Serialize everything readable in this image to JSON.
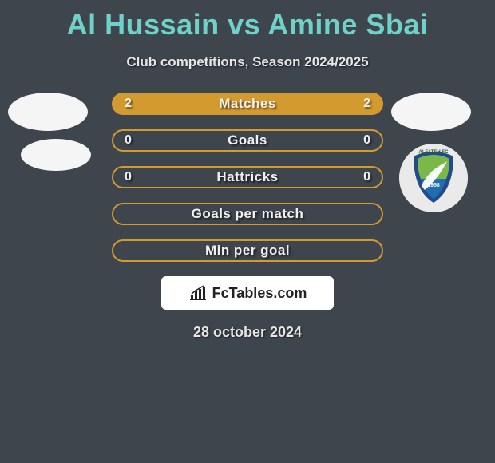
{
  "title": "Al Hussain vs Amine Sbai",
  "title_color": "#6fd1c8",
  "subtitle": "Club competitions, Season 2024/2025",
  "background_color": "#3e454d",
  "rows": [
    {
      "label": "Matches",
      "left": "2",
      "right": "2",
      "fill": "#d39a30",
      "border": "#d39a30",
      "label_only": false
    },
    {
      "label": "Goals",
      "left": "0",
      "right": "0",
      "fill": "none",
      "border": "#d39a30",
      "label_only": false
    },
    {
      "label": "Hattricks",
      "left": "0",
      "right": "0",
      "fill": "none",
      "border": "#d39a30",
      "label_only": false
    },
    {
      "label": "Goals per match",
      "left": "",
      "right": "",
      "fill": "none",
      "border": "#d39a30",
      "label_only": true
    },
    {
      "label": "Min per goal",
      "left": "",
      "right": "",
      "fill": "none",
      "border": "#d39a30",
      "label_only": true
    }
  ],
  "attribution": "FcTables.com",
  "date": "28 october 2024",
  "club_badge": {
    "bg": "#eaeaea",
    "shield_outer": "#234a8b",
    "shield_inner_top": "#7ab84a",
    "shield_inner_bottom": "#1f6fb0",
    "swoosh": "#ffffff",
    "text_top": "ALFATEH FC",
    "text_year": "1958"
  }
}
